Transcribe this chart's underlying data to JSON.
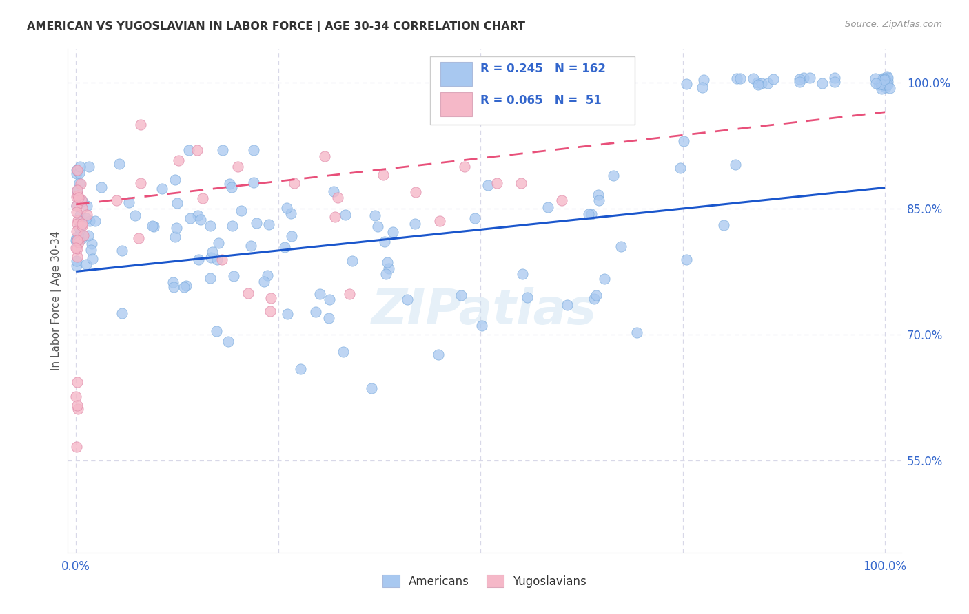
{
  "title": "AMERICAN VS YUGOSLAVIAN IN LABOR FORCE | AGE 30-34 CORRELATION CHART",
  "source": "Source: ZipAtlas.com",
  "ylabel": "In Labor Force | Age 30-34",
  "watermark": "ZIPatlas",
  "legend_R_american": "0.245",
  "legend_N_american": "162",
  "legend_R_yugoslav": "0.065",
  "legend_N_yugoslav": " 51",
  "american_color": "#a8c8f0",
  "yugoslav_color": "#f5b8c8",
  "american_line_color": "#1a56cc",
  "yugoslav_line_color": "#e8507a",
  "title_color": "#333333",
  "source_color": "#999999",
  "axis_label_color": "#3366cc",
  "ylabel_color": "#555555",
  "grid_color": "#d8d8e8",
  "xlim": [
    -0.01,
    1.02
  ],
  "ylim": [
    0.44,
    1.04
  ],
  "ytick_values": [
    0.55,
    0.7,
    0.85,
    1.0
  ],
  "ytick_labels": [
    "55.0%",
    "70.0%",
    "85.0%",
    "100.0%"
  ],
  "am_line_y0": 0.775,
  "am_line_y1": 0.875,
  "yu_line_y0": 0.855,
  "yu_line_y1": 0.965
}
